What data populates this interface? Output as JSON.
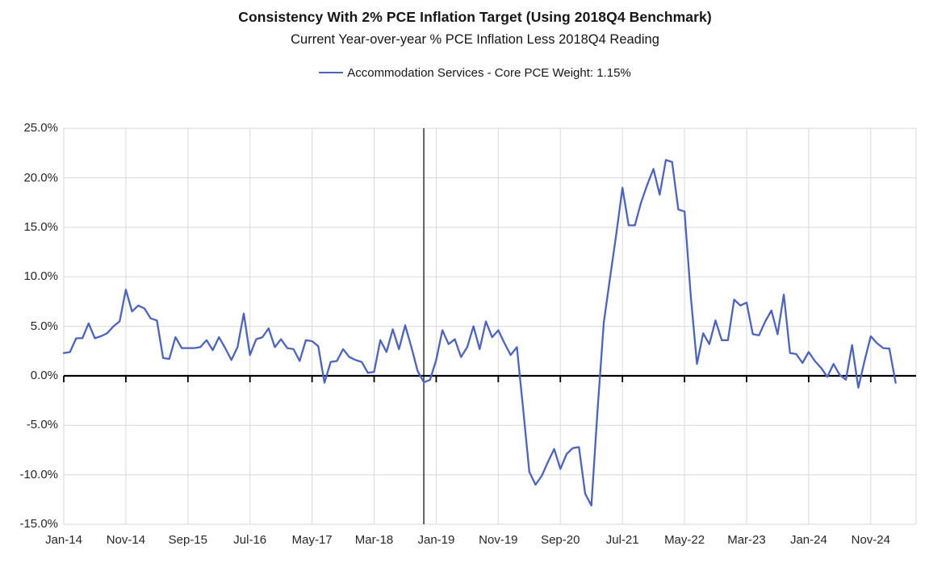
{
  "header": {
    "title": "Consistency With 2% PCE Inflation Target (Using 2018Q4 Benchmark)",
    "subtitle": "Current Year-over-year % PCE Inflation Less 2018Q4 Reading"
  },
  "legend": {
    "label": "Accommodation Services - Core PCE Weight: 1.15%"
  },
  "colors": {
    "series_line": "#4a63c6",
    "gridline": "#d9d9d9",
    "axis": "#000000",
    "benchmark_line": "#000000",
    "text": "#262626"
  },
  "chart_data": {
    "type": "line",
    "title": "Consistency With 2% PCE Inflation Target (Using 2018Q4 Benchmark)",
    "subtitle": "Current Year-over-year % PCE Inflation Less 2018Q4 Reading",
    "xlabel": "",
    "ylabel": "",
    "grid": true,
    "legend_position": "top",
    "ylim": [
      -15,
      25
    ],
    "y_ticks": [
      25,
      20,
      15,
      10,
      5,
      0,
      -5,
      -10,
      -15
    ],
    "y_tick_labels": [
      "25.0%",
      "20.0%",
      "15.0%",
      "10.0%",
      "5.0%",
      "0.0%",
      "-5.0%",
      "-10.0%",
      "-15.0%"
    ],
    "x_start_month": "Jan-2014",
    "x_frequency": "monthly",
    "x_tick_month_indices": [
      0,
      10,
      20,
      30,
      40,
      50,
      60,
      70,
      80,
      90,
      100,
      110,
      120,
      130
    ],
    "x_tick_labels": [
      "Jan-14",
      "Nov-14",
      "Sep-15",
      "Jul-16",
      "May-17",
      "Mar-18",
      "Jan-19",
      "Nov-19",
      "Sep-20",
      "Jul-21",
      "May-22",
      "Mar-23",
      "Jan-24",
      "Nov-24"
    ],
    "benchmark_vline_month": "Nov-2018",
    "benchmark_vline_month_index": 58,
    "series": [
      {
        "name": "Accommodation Services - Core PCE Weight: 1.15%",
        "color": "#4a63c6",
        "values": [
          2.3,
          2.4,
          3.8,
          3.8,
          5.3,
          3.8,
          4.0,
          4.3,
          5.0,
          5.5,
          8.7,
          6.5,
          7.1,
          6.8,
          5.8,
          5.6,
          1.8,
          1.7,
          3.9,
          2.8,
          2.8,
          2.8,
          2.9,
          3.6,
          2.6,
          3.9,
          2.8,
          1.6,
          2.9,
          6.3,
          2.1,
          3.7,
          3.9,
          4.8,
          2.9,
          3.7,
          2.8,
          2.7,
          1.5,
          3.6,
          3.5,
          3.0,
          -0.7,
          1.4,
          1.5,
          2.7,
          1.9,
          1.6,
          1.4,
          0.3,
          0.4,
          3.6,
          2.4,
          4.7,
          2.7,
          5.1,
          2.9,
          0.5,
          -0.65,
          -0.4,
          1.6,
          4.6,
          3.2,
          3.7,
          1.9,
          2.9,
          5.0,
          2.7,
          5.5,
          3.9,
          4.6,
          3.3,
          2.1,
          2.9,
          -3.3,
          -9.7,
          -11.0,
          -10.1,
          -8.7,
          -7.4,
          -9.4,
          -7.9,
          -7.3,
          -7.2,
          -11.9,
          -13.1,
          -3.4,
          5.4,
          9.9,
          14.3,
          19.0,
          15.2,
          15.2,
          17.5,
          19.3,
          20.9,
          18.3,
          21.8,
          21.6,
          16.8,
          16.6,
          8.1,
          1.2,
          4.3,
          3.2,
          5.6,
          3.6,
          3.6,
          7.7,
          7.1,
          7.4,
          4.2,
          4.1,
          5.5,
          6.6,
          4.2,
          8.2,
          2.3,
          2.2,
          1.3,
          2.4,
          1.5,
          0.8,
          -0.1,
          1.2,
          0.1,
          -0.4,
          3.1,
          -1.2,
          1.5,
          4.0,
          3.3,
          2.8,
          2.75,
          -0.7
        ]
      }
    ]
  }
}
